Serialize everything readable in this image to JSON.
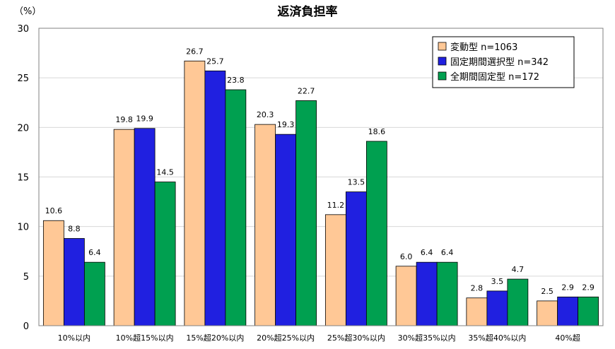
{
  "chart_data": {
    "type": "bar",
    "title": "返済負担率",
    "unit_label": "（%）",
    "ylim": [
      0,
      30
    ],
    "yticks": [
      0,
      5,
      10,
      15,
      20,
      25,
      30
    ],
    "grid": true,
    "legend_position": "top-right",
    "categories": [
      "10%以内",
      "10%超15%以内",
      "15%超20%以内",
      "20%超25%以内",
      "25%超30%以内",
      "30%超35%以内",
      "35%超40%以内",
      "40%超"
    ],
    "series": [
      {
        "name": "変動型 n=1063",
        "color": "#FFC896",
        "values": [
          10.6,
          19.8,
          26.7,
          20.3,
          11.2,
          6.0,
          2.8,
          2.5
        ],
        "labels": [
          "10.6",
          "19.8",
          "26.7",
          "20.3",
          "11.2",
          "6.0",
          "2.8",
          "2.5"
        ]
      },
      {
        "name": "固定期間選択型 n=342",
        "color": "#2020E0",
        "values": [
          8.8,
          19.9,
          25.7,
          19.3,
          13.5,
          6.4,
          3.5,
          2.9
        ],
        "labels": [
          "8.8",
          "19.9",
          "25.7",
          "19.3",
          "13.5",
          "6.4",
          "3.5",
          "2.9"
        ]
      },
      {
        "name": "全期間固定型 n=172",
        "color": "#00A050",
        "values": [
          6.4,
          14.5,
          23.8,
          22.7,
          18.6,
          6.4,
          4.7,
          2.9
        ],
        "labels": [
          "6.4",
          "14.5",
          "23.8",
          "22.7",
          "18.6",
          "6.4",
          "4.7",
          "2.9"
        ]
      }
    ]
  }
}
